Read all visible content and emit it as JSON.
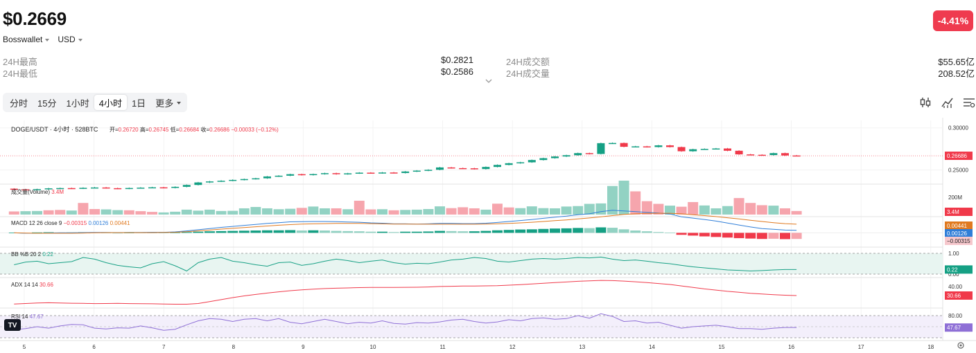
{
  "header": {
    "price": "$0.2669",
    "change": "-4.41%",
    "change_color": "#ef3b4f",
    "exchange": "Bosswallet",
    "currency": "USD"
  },
  "stats": {
    "high_label": "24H最高",
    "high_value": "$0.2821",
    "low_label": "24H最低",
    "low_value": "$0.2586",
    "turnover_label": "24H成交额",
    "turnover_value": "$55.65亿",
    "volume_label": "24H成交量",
    "volume_value": "208.52亿"
  },
  "tabs": [
    {
      "label": "分时"
    },
    {
      "label": "15分"
    },
    {
      "label": "1小时"
    },
    {
      "label": "4小时"
    },
    {
      "label": "1日"
    },
    {
      "label": "更多"
    }
  ],
  "active_tab": "4小时",
  "toolbar_icons": [
    "candlestick-icon",
    "indicator-icon",
    "settings-icon"
  ],
  "chart_data": {
    "type": "candlestick",
    "colors": {
      "up": "#15a084",
      "down": "#f0394a",
      "up_light": "#92d2c3",
      "down_light": "#f6a5ad"
    },
    "x_ticks": [
      "5",
      "6",
      "7",
      "8",
      "9",
      "10",
      "11",
      "12",
      "13",
      "14",
      "15",
      "16",
      "17",
      "18"
    ],
    "main": {
      "title": "DOGE/USDT · 4小时 · 528BTC",
      "ohlc_text": {
        "open_label": "开=",
        "open": "0.26720",
        "high_label": "高=",
        "high": "0.26745",
        "low_label": "低=",
        "low": "0.26684",
        "close_label": "收=",
        "close": "0.26686",
        "change": "−0.00033 (−0.12%)"
      },
      "y_ticks": [
        "0.30000",
        "0.25000"
      ],
      "y_range": [
        0.2365,
        0.3055
      ],
      "last_price": "0.26686",
      "closes": [
        0.227,
        0.2265,
        0.2272,
        0.2282,
        0.2285,
        0.228,
        0.2288,
        0.2292,
        0.2284,
        0.2278,
        0.2286,
        0.229,
        0.2294,
        0.2287,
        0.23,
        0.2322,
        0.2352,
        0.2364,
        0.2372,
        0.2382,
        0.2392,
        0.2401,
        0.2423,
        0.2432,
        0.245,
        0.244,
        0.2451,
        0.2462,
        0.245,
        0.246,
        0.2468,
        0.2462,
        0.247,
        0.2464,
        0.2482,
        0.2492,
        0.2502,
        0.253,
        0.2522,
        0.252,
        0.2511,
        0.2536,
        0.256,
        0.258,
        0.2591,
        0.2618,
        0.264,
        0.266,
        0.2675,
        0.27,
        0.269,
        0.2818,
        0.282,
        0.2775,
        0.278,
        0.2772,
        0.2792,
        0.2772,
        0.2722,
        0.2746,
        0.275,
        0.2755,
        0.2728,
        0.2685,
        0.268,
        0.2677,
        0.27,
        0.2672,
        0.2669
      ],
      "opens": [
        0.2278,
        0.227,
        0.2265,
        0.2272,
        0.2282,
        0.2285,
        0.228,
        0.2288,
        0.2292,
        0.2284,
        0.2278,
        0.2286,
        0.229,
        0.2294,
        0.2287,
        0.23,
        0.2322,
        0.2352,
        0.2364,
        0.2372,
        0.2382,
        0.2392,
        0.2401,
        0.2423,
        0.2432,
        0.245,
        0.244,
        0.2451,
        0.2462,
        0.245,
        0.246,
        0.2468,
        0.2462,
        0.247,
        0.2464,
        0.2482,
        0.2492,
        0.2502,
        0.253,
        0.2522,
        0.252,
        0.2511,
        0.2536,
        0.256,
        0.258,
        0.2591,
        0.2618,
        0.264,
        0.266,
        0.2675,
        0.27,
        0.269,
        0.2818,
        0.282,
        0.2775,
        0.278,
        0.2772,
        0.2792,
        0.2772,
        0.2722,
        0.2746,
        0.275,
        0.2755,
        0.2728,
        0.2685,
        0.268,
        0.2677,
        0.27,
        0.2672
      ]
    },
    "volume": {
      "title": "成交量(Volume)",
      "value": "3.4M",
      "y_ticks": [
        "200M"
      ],
      "last_label": "3.4M",
      "max": 310,
      "values": [
        35,
        38,
        40,
        48,
        52,
        45,
        130,
        62,
        58,
        50,
        48,
        38,
        30,
        24,
        32,
        55,
        44,
        55,
        40,
        42,
        70,
        85,
        70,
        60,
        65,
        75,
        90,
        70,
        70,
        60,
        155,
        58,
        60,
        48,
        52,
        55,
        62,
        92,
        72,
        82,
        70,
        55,
        122,
        80,
        72,
        92,
        72,
        70,
        90,
        95,
        120,
        125,
        320,
        380,
        260,
        150,
        120,
        100,
        88,
        140,
        102,
        70,
        95,
        185,
        130,
        105,
        100,
        70,
        40
      ],
      "down_flags": [
        1,
        0,
        0,
        1,
        1,
        0,
        1,
        1,
        0,
        0,
        1,
        1,
        1,
        0,
        0,
        0,
        0,
        0,
        0,
        0,
        0,
        0,
        0,
        0,
        0,
        1,
        0,
        0,
        1,
        0,
        1,
        1,
        0,
        1,
        0,
        0,
        0,
        0,
        1,
        1,
        1,
        0,
        1,
        1,
        0,
        0,
        0,
        0,
        0,
        0,
        0,
        0,
        0,
        0,
        1,
        1,
        1,
        0,
        1,
        1,
        0,
        0,
        0,
        1,
        1,
        1,
        0,
        1,
        1
      ]
    },
    "macd": {
      "title": "MACD 12 26 close 9",
      "values_text": [
        "−0.00315",
        "0.00126",
        "0.00441"
      ],
      "value_colors": [
        "#f0394a",
        "#2f7ed8",
        "#e0791f"
      ],
      "labels": [
        "0.00441",
        "0.00126",
        "−0.00315"
      ],
      "range": [
        -0.0062,
        0.0072
      ],
      "hist": [
        0.0001,
        0.0,
        0.0002,
        0.0003,
        0.0002,
        0.0002,
        0.0003,
        0.0002,
        0.0001,
        0.0,
        0.0001,
        0.0002,
        0.0002,
        0.0001,
        0.0002,
        0.0004,
        0.0006,
        0.0008,
        0.0009,
        0.001,
        0.0011,
        0.0012,
        0.0013,
        0.0013,
        0.0014,
        0.0012,
        0.0013,
        0.0012,
        0.001,
        0.0009,
        0.0008,
        0.0006,
        0.0006,
        0.0004,
        0.0006,
        0.0006,
        0.0007,
        0.001,
        0.0009,
        0.0008,
        0.0008,
        0.001,
        0.0013,
        0.0015,
        0.0017,
        0.0018,
        0.002,
        0.0022,
        0.0023,
        0.0025,
        0.0024,
        0.0028,
        0.0026,
        0.0018,
        0.0012,
        0.0008,
        0.0004,
        0.0001,
        -0.001,
        -0.0014,
        -0.0018,
        -0.0021,
        -0.0024,
        -0.0027,
        -0.0029,
        -0.0031,
        -0.003,
        -0.0032,
        -0.0031
      ],
      "macd_line": [
        0.0,
        -0.0002,
        -0.0002,
        -0.0001,
        0.0,
        0.0,
        0.0001,
        0.0002,
        0.0002,
        0.0001,
        0.0002,
        0.0002,
        0.0003,
        0.0003,
        0.0005,
        0.001,
        0.0016,
        0.0022,
        0.0028,
        0.0033,
        0.0038,
        0.0043,
        0.0048,
        0.0052,
        0.0056,
        0.0057,
        0.0058,
        0.0058,
        0.0057,
        0.0055,
        0.0054,
        0.0051,
        0.0049,
        0.0046,
        0.0046,
        0.0045,
        0.0046,
        0.0048,
        0.0048,
        0.0047,
        0.0047,
        0.0049,
        0.0053,
        0.0058,
        0.0063,
        0.0068,
        0.0074,
        0.008,
        0.0085,
        0.0092,
        0.0097,
        0.0108,
        0.0115,
        0.0112,
        0.0108,
        0.0104,
        0.0101,
        0.0096,
        0.0082,
        0.0075,
        0.0068,
        0.006,
        0.005,
        0.004,
        0.003,
        0.0022,
        0.0018,
        0.0014,
        0.0013
      ],
      "signal_line": [
        0.0,
        -0.0001,
        -0.0002,
        -0.0002,
        -0.0002,
        -0.0002,
        -0.0001,
        0.0,
        0.0001,
        0.0001,
        0.0001,
        0.0001,
        0.0001,
        0.0002,
        0.0003,
        0.0006,
        0.001,
        0.0014,
        0.0019,
        0.0023,
        0.0027,
        0.0031,
        0.0035,
        0.0039,
        0.0042,
        0.0045,
        0.0046,
        0.0047,
        0.0048,
        0.0048,
        0.0048,
        0.0047,
        0.0046,
        0.0045,
        0.0045,
        0.0044,
        0.0044,
        0.0044,
        0.0044,
        0.0044,
        0.0044,
        0.0045,
        0.0046,
        0.0048,
        0.0051,
        0.0054,
        0.0058,
        0.0062,
        0.0066,
        0.0071,
        0.0076,
        0.0082,
        0.0088,
        0.0094,
        0.0097,
        0.0099,
        0.01,
        0.01,
        0.0097,
        0.0092,
        0.0088,
        0.0083,
        0.0077,
        0.0071,
        0.0064,
        0.0058,
        0.0052,
        0.0047,
        0.0044
      ]
    },
    "bb": {
      "title": "BB %B 20 2",
      "value": "0.22",
      "y_ticks": [
        "1.00",
        "0.00"
      ],
      "last_label": "0.22",
      "values": [
        0.45,
        0.58,
        0.62,
        0.5,
        0.55,
        0.6,
        0.8,
        0.72,
        0.55,
        0.42,
        0.35,
        0.3,
        0.5,
        0.6,
        0.4,
        0.15,
        0.55,
        0.72,
        0.8,
        0.62,
        0.55,
        0.45,
        0.38,
        0.55,
        0.58,
        0.42,
        0.5,
        0.62,
        0.72,
        0.65,
        0.55,
        0.62,
        0.68,
        0.55,
        0.48,
        0.52,
        0.5,
        0.58,
        0.68,
        0.72,
        0.8,
        0.75,
        0.62,
        0.58,
        0.65,
        0.72,
        0.75,
        0.72,
        0.75,
        0.8,
        0.78,
        0.82,
        0.72,
        0.65,
        0.68,
        0.62,
        0.55,
        0.5,
        0.42,
        0.35,
        0.3,
        0.25,
        0.2,
        0.18,
        0.15,
        0.17,
        0.2,
        0.22,
        0.22
      ]
    },
    "adx": {
      "title": "ADX 14 14",
      "value": "30.66",
      "y_ticks": [
        "40.00"
      ],
      "last_label": "30.66",
      "range": [
        20,
        47
      ],
      "values": [
        22.0,
        22.5,
        23.0,
        23.3,
        23.0,
        22.8,
        22.6,
        22.4,
        22.5,
        22.6,
        22.4,
        22.3,
        22.2,
        22.0,
        21.8,
        21.8,
        22.5,
        24.5,
        26.5,
        28.5,
        30.3,
        31.8,
        33.2,
        34.5,
        35.6,
        36.5,
        37.2,
        37.8,
        38.2,
        38.5,
        38.8,
        39.0,
        39.0,
        39.0,
        39.1,
        39.2,
        39.5,
        40.0,
        40.2,
        40.4,
        40.4,
        40.6,
        40.8,
        41.3,
        41.9,
        42.6,
        43.3,
        44.0,
        44.6,
        45.3,
        45.8,
        46.2,
        46.0,
        45.5,
        44.8,
        44.0,
        43.0,
        42.0,
        40.5,
        39.0,
        37.5,
        36.3,
        35.0,
        34.0,
        33.0,
        32.3,
        31.6,
        31.0,
        30.66
      ]
    },
    "rsi": {
      "title": "RSI 14",
      "value": "47.67",
      "y_ticks": [
        "80.00"
      ],
      "last_label": "47.67",
      "range": [
        20,
        95
      ],
      "values": [
        42,
        45,
        50,
        46,
        52,
        56,
        55,
        46,
        44,
        47,
        46,
        52,
        47,
        40,
        43,
        55,
        66,
        72,
        70,
        64,
        70,
        72,
        66,
        72,
        62,
        58,
        64,
        70,
        64,
        58,
        62,
        60,
        66,
        59,
        57,
        61,
        60,
        63,
        68,
        70,
        64,
        60,
        63,
        69,
        66,
        72,
        74,
        70,
        72,
        80,
        73,
        85,
        78,
        64,
        66,
        60,
        62,
        54,
        46,
        50,
        52,
        54,
        50,
        45,
        45,
        43,
        46,
        48,
        47.67
      ]
    }
  }
}
